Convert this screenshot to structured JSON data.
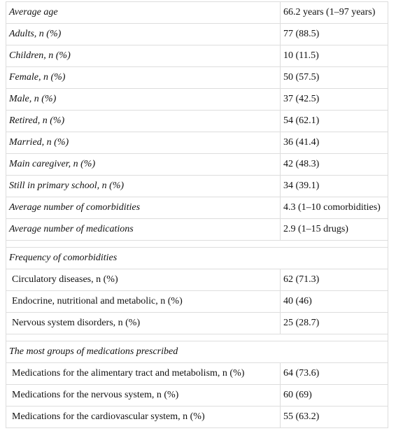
{
  "table": {
    "rows": [
      [
        "Average age",
        "66.2 years (1–97 years)"
      ],
      [
        "Adults, n (%)",
        "77 (88.5)"
      ],
      [
        "Children, n (%)",
        "10 (11.5)"
      ],
      [
        "Female, n (%)",
        "50 (57.5)"
      ],
      [
        "Male, n (%)",
        "37 (42.5)"
      ],
      [
        "Retired, n (%)",
        "54 (62.1)"
      ],
      [
        "Married, n (%)",
        "36 (41.4)"
      ],
      [
        "Main caregiver, n (%)",
        "42 (48.3)"
      ],
      [
        "Still in primary school, n (%)",
        "34 (39.1)"
      ],
      [
        "Average number of comorbidities",
        "4.3 (1–10 comorbidities)"
      ],
      [
        "Average number of medications",
        "2.9 (1–15 drugs)"
      ]
    ],
    "groups": [
      {
        "title": "Frequency of comorbidities",
        "rows": [
          [
            "Circulatory diseases, n (%)",
            "62 (71.3)"
          ],
          [
            "Endocrine, nutritional and metabolic, n (%)",
            "40 (46)"
          ],
          [
            "Nervous system disorders, n (%)",
            "25 (28.7)"
          ]
        ]
      },
      {
        "title": "The most groups of medications prescribed",
        "rows": [
          [
            "Medications for the alimentary tract and metabolism, n (%)",
            "64 (73.6)"
          ],
          [
            "Medications for the nervous system, n (%)",
            "60 (69)"
          ],
          [
            "Medications for the cardiovascular system, n (%)",
            "55 (63.2)"
          ]
        ]
      }
    ]
  }
}
